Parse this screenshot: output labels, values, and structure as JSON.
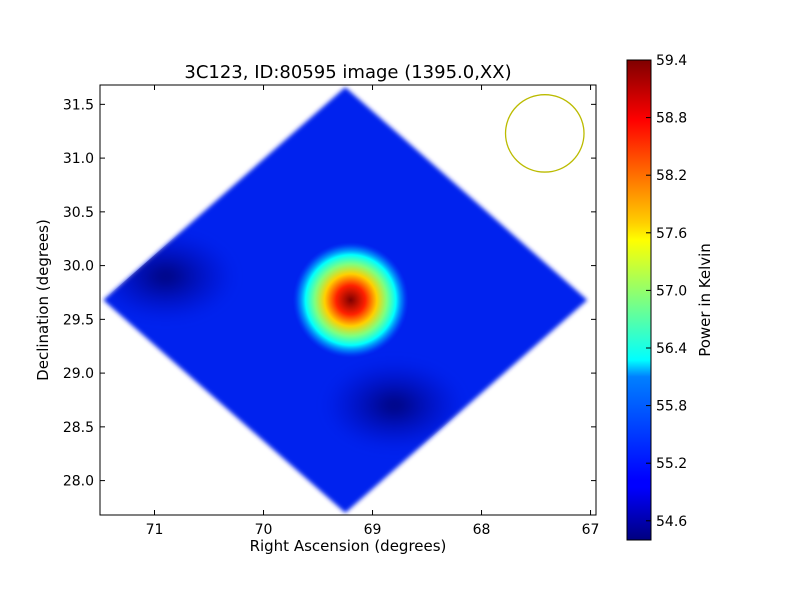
{
  "chart_data": {
    "type": "heatmap",
    "title": "3C123, ID:80595 image (1395.0,XX)",
    "xlabel": "Right Ascension (degrees)",
    "ylabel": "Declination (degrees)",
    "xlim": [
      71.5,
      66.95
    ],
    "ylim": [
      27.68,
      31.68
    ],
    "x_axis_reversed": true,
    "x_ticks": [
      71,
      70,
      69,
      68,
      67
    ],
    "y_ticks": [
      28.0,
      28.5,
      29.0,
      29.5,
      30.0,
      30.5,
      31.0,
      31.5
    ],
    "colorbar": {
      "label": "Power in Kelvin",
      "min": 54.4,
      "max": 59.4,
      "ticks": [
        54.6,
        55.2,
        55.8,
        56.4,
        57.0,
        57.6,
        58.2,
        58.8,
        59.4
      ],
      "colormap": "jet"
    },
    "map": {
      "shape": "diamond",
      "center_ra": 69.25,
      "center_dec": 29.68,
      "half_width_ra": 2.22,
      "half_height_dec": 1.98,
      "background_value": 54.85,
      "features": [
        {
          "kind": "peak",
          "ra": 69.2,
          "dec": 29.68,
          "value": 59.4
        },
        {
          "kind": "cold-region",
          "ra": 70.9,
          "dec": 29.9,
          "value": 54.4
        },
        {
          "kind": "cold-region",
          "ra": 68.8,
          "dec": 28.7,
          "value": 54.5
        }
      ]
    },
    "beam_marker": {
      "shape": "circle",
      "ra": 67.42,
      "dec": 31.23,
      "radius_deg": 0.36,
      "color": "#bbbb00"
    }
  }
}
